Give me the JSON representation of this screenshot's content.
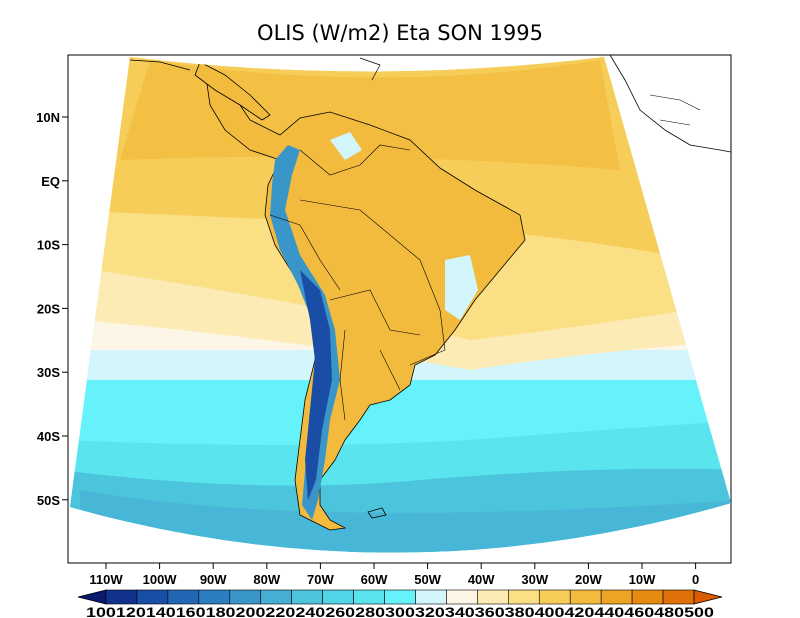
{
  "title": "OLIS (W/m2) Eta SON 1995",
  "lat_labels": [
    "10N",
    "EQ",
    "10S",
    "20S",
    "30S",
    "40S",
    "50S"
  ],
  "lon_labels": [
    "110W",
    "100W",
    "90W",
    "80W",
    "70W",
    "60W",
    "50W",
    "40W",
    "30W",
    "20W",
    "10W",
    "0"
  ],
  "colorbar": {
    "labels_text": "100120140160180200220240260280300320340360380400420440460480500",
    "levels": [
      100,
      120,
      140,
      160,
      180,
      200,
      220,
      240,
      260,
      280,
      300,
      320,
      340,
      360,
      380,
      400,
      420,
      440,
      460,
      480,
      500
    ],
    "colors": [
      "#0a1a6e",
      "#12338c",
      "#1a4ea6",
      "#2266b4",
      "#2d7ec0",
      "#3a96c8",
      "#46aed2",
      "#4cc4dc",
      "#50d4e6",
      "#5ae4ee",
      "#66f2fa",
      "#d2f6fc",
      "#fdf6e6",
      "#fcebb4",
      "#fbdf84",
      "#f7cd5a",
      "#f2bb3e",
      "#eda424",
      "#e68a10",
      "#e07008",
      "#dd5a04"
    ]
  },
  "color_scale": {
    "ocean_south": "#66f2fa",
    "ocean_mid": "#d2f6fc",
    "ocean_north": "#f7cd5a",
    "land": "#f2bb3e"
  }
}
